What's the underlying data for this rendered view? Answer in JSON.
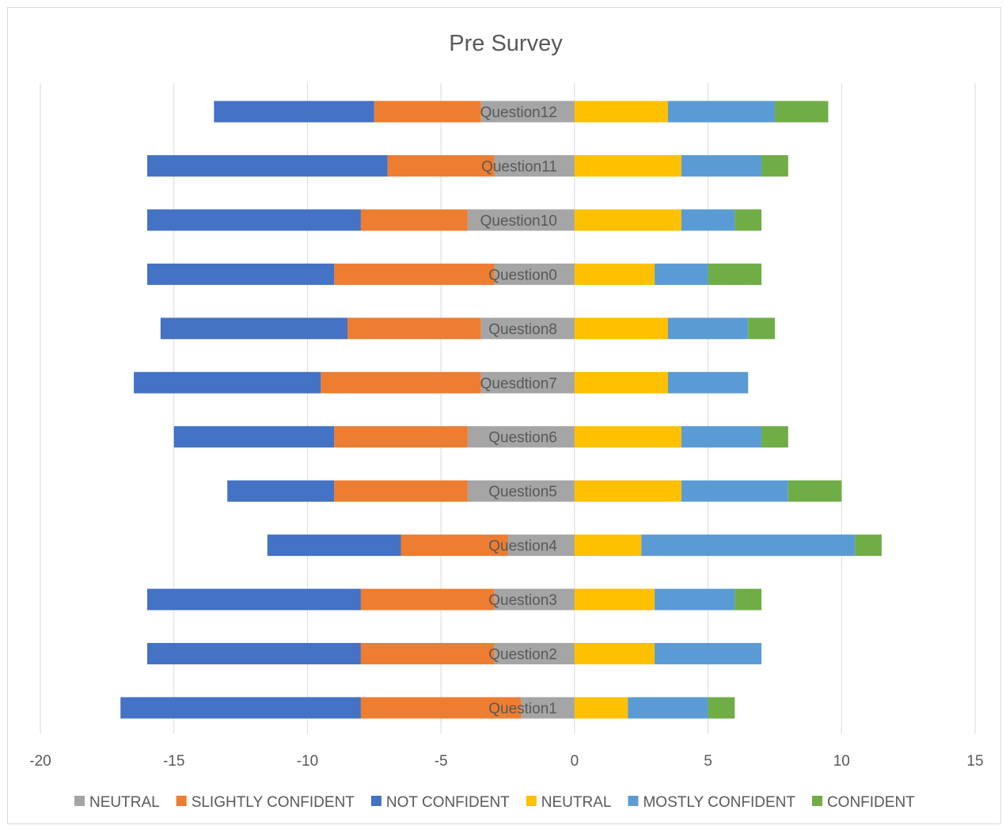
{
  "chart_data": {
    "type": "bar",
    "orientation": "horizontal-diverging-stacked",
    "title": "Pre Survey",
    "xlim": [
      -20,
      15
    ],
    "xticks": [
      -20,
      -15,
      -10,
      -5,
      0,
      5,
      10,
      15
    ],
    "grid": true,
    "legend_position": "bottom",
    "categories": [
      "Question1",
      "Question2",
      "Question3",
      "Question4",
      "Question5",
      "Question6",
      "Quesdtion7",
      "Question8",
      "Question0",
      "Question10",
      "Question11",
      "Question12"
    ],
    "series": [
      {
        "name": "NEUTRAL",
        "side": "negative",
        "color": "#a5a5a5",
        "values": [
          -2,
          -3,
          -3,
          -2.5,
          -4,
          -4,
          -3.5,
          -3.5,
          -3,
          -4,
          -3,
          -3.5
        ]
      },
      {
        "name": "SLIGHTLY CONFIDENT",
        "side": "negative",
        "color": "#ed7d31",
        "values": [
          -6,
          -5,
          -5,
          -4,
          -5,
          -5,
          -6,
          -5,
          -6,
          -4,
          -4,
          -4
        ]
      },
      {
        "name": "NOT CONFIDENT",
        "side": "negative",
        "color": "#4472c4",
        "values": [
          -9,
          -8,
          -8,
          -5,
          -4,
          -6,
          -7,
          -7,
          -7,
          -8,
          -9,
          -6
        ]
      },
      {
        "name": "NEUTRAL",
        "side": "positive",
        "color": "#ffc000",
        "values": [
          2,
          3,
          3,
          2.5,
          4,
          4,
          3.5,
          3.5,
          3,
          4,
          4,
          3.5
        ]
      },
      {
        "name": "MOSTLY CONFIDENT",
        "side": "positive",
        "color": "#5b9bd5",
        "values": [
          3,
          4,
          3,
          8,
          4,
          3,
          3,
          3,
          2,
          2,
          3,
          4
        ]
      },
      {
        "name": "CONFIDENT",
        "side": "positive",
        "color": "#70ad47",
        "values": [
          1,
          0,
          1,
          1,
          2,
          1,
          0,
          1,
          2,
          1,
          1,
          2
        ]
      }
    ]
  }
}
